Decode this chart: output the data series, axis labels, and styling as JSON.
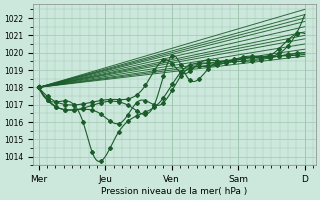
{
  "bg_color": "#cce8dc",
  "grid_color": "#a0c8b0",
  "line_color": "#1a5c2a",
  "marker_color": "#1a5c2a",
  "ylabel_ticks": [
    1014,
    1015,
    1016,
    1017,
    1018,
    1019,
    1020,
    1021,
    1022
  ],
  "ylim": [
    1013.5,
    1022.8
  ],
  "xlabel": "Pression niveau de la mer( hPa )",
  "xtick_labels": [
    "Mer",
    "Jeu",
    "Ven",
    "Sam",
    "D"
  ],
  "xtick_positions": [
    0,
    24,
    48,
    72,
    96
  ],
  "xlim": [
    -2,
    100
  ]
}
